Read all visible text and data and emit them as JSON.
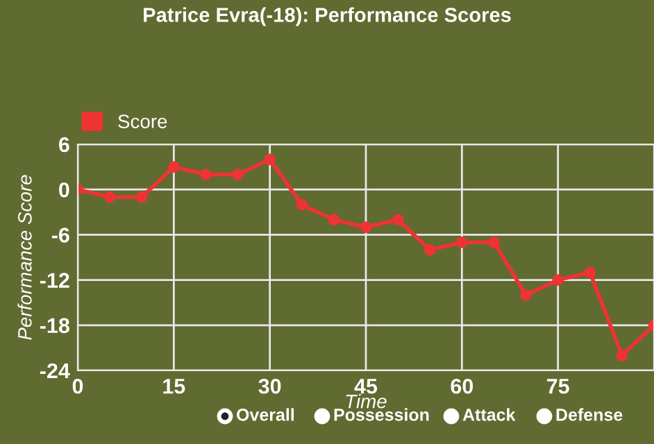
{
  "chart_data": {
    "type": "line",
    "title": "Patrice Evra(-18): Performance Scores",
    "xlabel": "Time",
    "ylabel": "Performance Score",
    "x": [
      0,
      5,
      10,
      15,
      20,
      25,
      30,
      35,
      40,
      45,
      50,
      55,
      60,
      65,
      70,
      75,
      80,
      85,
      90
    ],
    "series": [
      {
        "name": "Score",
        "color": "#ee3333",
        "values": [
          0,
          -1,
          -1,
          3,
          2,
          2,
          4,
          -2,
          -4,
          -5,
          -4,
          -8,
          -7,
          -7,
          -14,
          -12,
          -11,
          -22,
          -18
        ]
      }
    ],
    "xlim": [
      0,
      90
    ],
    "xticks": [
      0,
      15,
      30,
      45,
      60,
      75
    ],
    "ylim": [
      -24,
      6
    ],
    "yticks": [
      6,
      0,
      -6,
      -12,
      -18,
      -24
    ],
    "grid": true,
    "legend": "top left",
    "marker": "circle",
    "line_style": "solid",
    "annotations": [
      "Overall",
      "Possession",
      "Attack",
      "Defense"
    ]
  }
}
